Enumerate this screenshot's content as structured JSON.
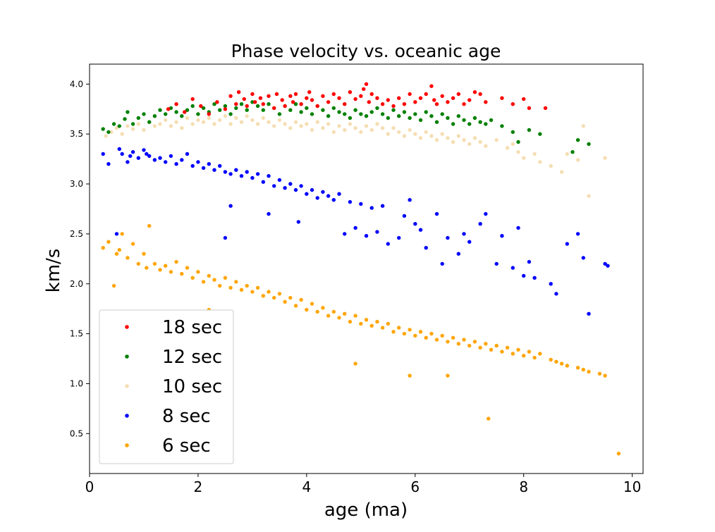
{
  "chart_data": {
    "type": "scatter",
    "title": "Phase velocity vs. oceanic age",
    "xlabel": "age (ma)",
    "ylabel": "km/s",
    "xlim": [
      0,
      10.2
    ],
    "ylim": [
      0.1,
      4.2
    ],
    "xticks": [
      0,
      2,
      4,
      6,
      8,
      10
    ],
    "xtick_labels": [
      "0",
      "2",
      "4",
      "6",
      "8",
      "10"
    ],
    "yticks": [
      0.5,
      1.0,
      1.5,
      2.0,
      2.5,
      3.0,
      3.5,
      4.0
    ],
    "ytick_labels": [
      "0.5",
      "1.0",
      "1.5",
      "2.0",
      "2.5",
      "3.0",
      "3.5",
      "4.0"
    ],
    "grid": false,
    "legend_position": "lower-left",
    "series": [
      {
        "name": "18 sec",
        "color": "#ff0000",
        "x": [
          1.45,
          1.6,
          1.75,
          1.9,
          2.05,
          2.2,
          2.35,
          2.5,
          2.6,
          2.7,
          2.75,
          2.85,
          2.9,
          3.0,
          3.05,
          3.15,
          3.2,
          3.3,
          3.4,
          3.45,
          3.55,
          3.6,
          3.7,
          3.75,
          3.8,
          3.9,
          4.0,
          4.05,
          4.1,
          4.2,
          4.3,
          4.4,
          4.5,
          4.6,
          4.7,
          4.8,
          4.9,
          5.0,
          5.05,
          5.1,
          5.15,
          5.2,
          5.3,
          5.4,
          5.5,
          5.6,
          5.7,
          5.8,
          5.9,
          6.0,
          6.1,
          6.2,
          6.3,
          6.35,
          6.4,
          6.5,
          6.6,
          6.7,
          6.8,
          6.9,
          7.0,
          7.1,
          7.2,
          7.3,
          7.6,
          7.8,
          8.0,
          8.1,
          8.4
        ],
        "y": [
          3.75,
          3.8,
          3.72,
          3.85,
          3.78,
          3.7,
          3.82,
          3.75,
          3.88,
          3.8,
          3.92,
          3.85,
          3.78,
          3.9,
          3.82,
          3.86,
          3.8,
          3.88,
          3.76,
          3.9,
          3.84,
          3.78,
          3.88,
          3.82,
          3.9,
          3.8,
          3.86,
          3.92,
          3.84,
          3.78,
          3.88,
          3.82,
          3.9,
          3.86,
          3.8,
          3.92,
          3.85,
          3.88,
          3.95,
          4.0,
          3.82,
          3.9,
          3.86,
          3.8,
          3.84,
          3.78,
          3.86,
          3.8,
          3.9,
          3.82,
          3.86,
          3.9,
          3.98,
          3.84,
          3.8,
          3.88,
          3.82,
          3.86,
          3.9,
          3.8,
          3.84,
          3.92,
          3.9,
          3.82,
          3.86,
          3.8,
          3.85,
          3.76,
          3.76
        ]
      },
      {
        "name": "12 sec",
        "color": "#008000",
        "x": [
          0.25,
          0.35,
          0.45,
          0.55,
          0.65,
          0.7,
          0.8,
          0.9,
          1.0,
          1.1,
          1.2,
          1.3,
          1.4,
          1.5,
          1.6,
          1.7,
          1.8,
          1.9,
          2.0,
          2.1,
          2.2,
          2.3,
          2.4,
          2.5,
          2.6,
          2.7,
          2.8,
          2.9,
          3.0,
          3.1,
          3.2,
          3.3,
          3.4,
          3.5,
          3.6,
          3.7,
          3.8,
          3.9,
          4.0,
          4.1,
          4.2,
          4.3,
          4.4,
          4.5,
          4.6,
          4.7,
          4.8,
          4.9,
          5.0,
          5.1,
          5.2,
          5.3,
          5.4,
          5.5,
          5.6,
          5.7,
          5.8,
          5.9,
          6.0,
          6.1,
          6.2,
          6.3,
          6.4,
          6.5,
          6.6,
          6.7,
          6.8,
          6.9,
          7.0,
          7.1,
          7.2,
          7.3,
          7.4,
          7.6,
          7.8,
          7.9,
          8.1,
          8.3,
          8.9,
          9.0,
          9.2
        ],
        "y": [
          3.55,
          3.52,
          3.6,
          3.58,
          3.65,
          3.72,
          3.6,
          3.66,
          3.7,
          3.62,
          3.68,
          3.74,
          3.7,
          3.76,
          3.72,
          3.68,
          3.74,
          3.78,
          3.7,
          3.76,
          3.72,
          3.8,
          3.74,
          3.78,
          3.7,
          3.76,
          3.8,
          3.74,
          3.82,
          3.78,
          3.74,
          3.8,
          3.76,
          3.7,
          3.78,
          3.74,
          3.8,
          3.72,
          3.76,
          3.7,
          3.78,
          3.74,
          3.68,
          3.76,
          3.72,
          3.7,
          3.66,
          3.74,
          3.7,
          3.68,
          3.72,
          3.76,
          3.7,
          3.66,
          3.74,
          3.68,
          3.72,
          3.66,
          3.7,
          3.64,
          3.72,
          3.68,
          3.62,
          3.7,
          3.66,
          3.6,
          3.68,
          3.64,
          3.6,
          3.66,
          3.62,
          3.6,
          3.64,
          3.58,
          3.52,
          3.42,
          3.54,
          3.5,
          3.32,
          3.44,
          3.4
        ]
      },
      {
        "name": "10 sec",
        "color": "#f5deb3",
        "x": [
          0.3,
          0.4,
          0.5,
          0.6,
          0.7,
          0.8,
          0.9,
          1.0,
          1.1,
          1.2,
          1.3,
          1.4,
          1.5,
          1.6,
          1.7,
          1.8,
          1.9,
          2.0,
          2.1,
          2.2,
          2.3,
          2.4,
          2.5,
          2.6,
          2.7,
          2.8,
          2.9,
          3.0,
          3.1,
          3.2,
          3.3,
          3.4,
          3.5,
          3.6,
          3.7,
          3.8,
          3.9,
          4.0,
          4.1,
          4.2,
          4.3,
          4.4,
          4.5,
          4.6,
          4.7,
          4.8,
          4.9,
          5.0,
          5.1,
          5.2,
          5.3,
          5.4,
          5.5,
          5.6,
          5.7,
          5.8,
          5.9,
          6.0,
          6.1,
          6.2,
          6.3,
          6.4,
          6.5,
          6.6,
          6.7,
          6.8,
          6.9,
          7.0,
          7.1,
          7.2,
          7.3,
          7.5,
          7.7,
          7.8,
          7.9,
          8.0,
          8.2,
          8.3,
          8.5,
          8.7,
          8.8,
          9.0,
          9.1,
          9.2,
          9.5
        ],
        "y": [
          3.48,
          3.52,
          3.56,
          3.5,
          3.58,
          3.55,
          3.6,
          3.54,
          3.62,
          3.58,
          3.6,
          3.64,
          3.58,
          3.62,
          3.56,
          3.66,
          3.6,
          3.64,
          3.62,
          3.66,
          3.6,
          3.64,
          3.68,
          3.6,
          3.66,
          3.62,
          3.68,
          3.64,
          3.6,
          3.66,
          3.62,
          3.58,
          3.64,
          3.6,
          3.56,
          3.62,
          3.58,
          3.6,
          3.54,
          3.62,
          3.56,
          3.6,
          3.52,
          3.58,
          3.54,
          3.6,
          3.56,
          3.52,
          3.58,
          3.54,
          3.6,
          3.56,
          3.5,
          3.56,
          3.52,
          3.48,
          3.54,
          3.5,
          3.46,
          3.52,
          3.48,
          3.44,
          3.5,
          3.46,
          3.42,
          3.48,
          3.44,
          3.4,
          3.46,
          3.42,
          3.38,
          3.44,
          3.36,
          3.4,
          3.32,
          3.26,
          3.3,
          3.22,
          3.18,
          3.12,
          3.3,
          3.24,
          3.58,
          2.88,
          3.26
        ]
      },
      {
        "name": "8 sec",
        "color": "#0000ff",
        "x": [
          0.25,
          0.35,
          0.5,
          0.55,
          0.6,
          0.7,
          0.75,
          0.8,
          0.9,
          1.0,
          1.05,
          1.1,
          1.2,
          1.3,
          1.4,
          1.5,
          1.6,
          1.7,
          1.8,
          1.9,
          2.0,
          2.1,
          2.2,
          2.3,
          2.4,
          2.5,
          2.6,
          2.7,
          2.8,
          2.9,
          3.0,
          3.1,
          3.2,
          3.3,
          3.4,
          3.5,
          3.6,
          3.7,
          3.8,
          3.9,
          4.0,
          4.1,
          4.2,
          4.3,
          4.4,
          4.5,
          4.6,
          4.7,
          4.8,
          4.9,
          5.0,
          5.1,
          5.2,
          5.3,
          5.4,
          5.5,
          5.7,
          5.8,
          5.9,
          6.0,
          6.1,
          6.2,
          6.4,
          6.5,
          6.6,
          6.8,
          6.9,
          7.0,
          7.2,
          7.3,
          7.5,
          7.6,
          7.8,
          7.9,
          8.0,
          8.1,
          8.2,
          8.5,
          8.6,
          8.8,
          9.0,
          9.1,
          9.2,
          9.5,
          9.55,
          2.6,
          3.3,
          3.85,
          2.5
        ],
        "y": [
          3.3,
          3.2,
          2.5,
          3.35,
          3.3,
          3.22,
          3.28,
          3.32,
          3.26,
          3.34,
          3.3,
          3.28,
          3.24,
          3.26,
          3.22,
          3.28,
          3.2,
          3.24,
          3.3,
          3.18,
          3.22,
          3.16,
          3.2,
          3.14,
          3.18,
          3.12,
          3.1,
          3.14,
          3.08,
          3.12,
          3.06,
          3.1,
          3.02,
          3.08,
          2.98,
          3.04,
          2.96,
          3.0,
          2.94,
          2.98,
          2.9,
          2.94,
          2.86,
          2.92,
          2.88,
          2.84,
          2.9,
          2.5,
          2.82,
          2.56,
          2.8,
          2.48,
          2.76,
          2.52,
          2.78,
          2.4,
          2.46,
          2.68,
          2.84,
          2.6,
          2.54,
          2.36,
          2.7,
          2.2,
          2.46,
          2.3,
          2.5,
          2.42,
          2.6,
          2.7,
          2.2,
          2.48,
          2.16,
          2.56,
          2.08,
          2.22,
          2.06,
          2.0,
          1.9,
          2.4,
          2.5,
          2.26,
          1.7,
          2.2,
          2.18,
          2.78,
          2.7,
          2.62,
          2.46
        ]
      },
      {
        "name": "6 sec",
        "color": "#ffa500",
        "x": [
          0.25,
          0.35,
          0.45,
          0.5,
          0.55,
          0.6,
          0.7,
          0.8,
          0.9,
          1.0,
          1.05,
          1.1,
          1.2,
          1.3,
          1.4,
          1.5,
          1.6,
          1.7,
          1.8,
          1.9,
          2.0,
          2.1,
          2.2,
          2.3,
          2.4,
          2.5,
          2.6,
          2.7,
          2.8,
          2.9,
          3.0,
          3.1,
          3.2,
          3.3,
          3.4,
          3.5,
          3.6,
          3.7,
          3.8,
          3.9,
          4.0,
          4.1,
          4.2,
          4.3,
          4.4,
          4.5,
          4.6,
          4.7,
          4.8,
          4.9,
          5.0,
          5.1,
          5.2,
          5.3,
          5.4,
          5.5,
          5.6,
          5.7,
          5.8,
          5.9,
          6.0,
          6.1,
          6.2,
          6.3,
          6.4,
          6.5,
          6.6,
          6.7,
          6.8,
          6.9,
          7.0,
          7.1,
          7.2,
          7.3,
          7.4,
          7.5,
          7.6,
          7.7,
          7.8,
          7.9,
          8.0,
          8.1,
          8.2,
          8.3,
          8.5,
          8.6,
          8.7,
          8.8,
          9.0,
          9.1,
          9.2,
          9.4,
          9.5,
          9.75,
          1.1,
          1.85,
          2.2,
          0.8,
          4.9,
          5.9,
          6.6,
          7.35
        ],
        "y": [
          2.36,
          2.42,
          1.98,
          2.3,
          2.34,
          2.5,
          2.26,
          2.4,
          2.2,
          2.3,
          2.16,
          2.58,
          2.2,
          2.14,
          2.18,
          2.12,
          2.22,
          2.1,
          2.16,
          2.06,
          2.12,
          2.02,
          2.08,
          2.04,
          1.98,
          2.06,
          1.96,
          2.02,
          1.94,
          1.98,
          1.92,
          1.96,
          1.88,
          1.92,
          1.86,
          1.9,
          1.82,
          1.86,
          1.78,
          1.84,
          1.74,
          1.8,
          1.72,
          1.76,
          1.68,
          1.72,
          1.66,
          1.7,
          1.62,
          1.68,
          1.6,
          1.64,
          1.58,
          1.62,
          1.56,
          1.6,
          1.52,
          1.56,
          1.5,
          1.54,
          1.48,
          1.52,
          1.46,
          1.5,
          1.44,
          1.48,
          1.42,
          1.46,
          1.4,
          1.44,
          1.38,
          1.42,
          1.36,
          1.4,
          1.34,
          1.38,
          1.32,
          1.36,
          1.3,
          1.34,
          1.28,
          1.32,
          1.26,
          1.3,
          1.24,
          1.22,
          1.2,
          1.18,
          1.16,
          1.14,
          1.12,
          1.1,
          1.08,
          0.3,
          1.72,
          1.62,
          1.74,
          1.6,
          1.2,
          1.08,
          1.08,
          0.65
        ]
      }
    ]
  }
}
